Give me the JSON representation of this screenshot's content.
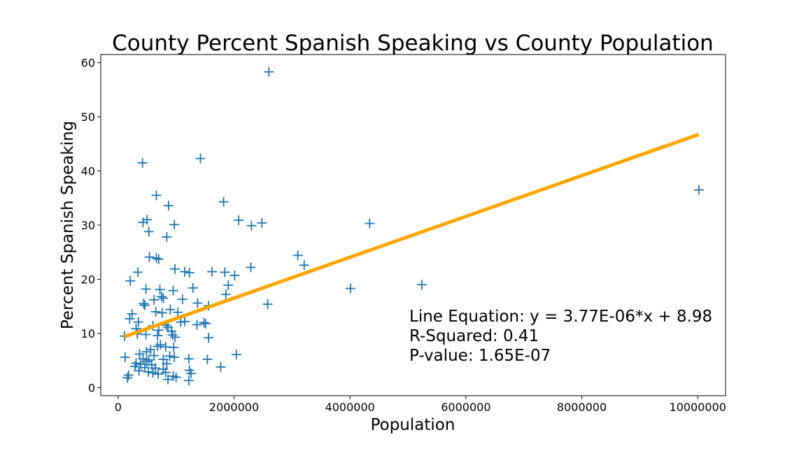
{
  "chart_data": {
    "type": "scatter",
    "title": "County Percent Spanish Speaking vs County Population",
    "xlabel": "Population",
    "ylabel": "Percent Spanish Speaking",
    "xlim": [
      -300000,
      10480000
    ],
    "ylim": [
      -1.5,
      61.5
    ],
    "x_ticks": [
      0,
      2000000,
      4000000,
      6000000,
      8000000,
      10000000
    ],
    "x_tick_labels": [
      "0",
      "2000000",
      "4000000",
      "6000000",
      "8000000",
      "10000000"
    ],
    "y_ticks": [
      0,
      10,
      20,
      30,
      40,
      50,
      60
    ],
    "y_tick_labels": [
      "0",
      "10",
      "20",
      "30",
      "40",
      "50",
      "60"
    ],
    "grid": false,
    "marker": "+",
    "point_color": "#1f77b4",
    "line_color": "#ffa500",
    "series": [
      {
        "points": [
          [
            2600000,
            58.3
          ],
          [
            1420000,
            42.3
          ],
          [
            420000,
            41.5
          ],
          [
            10020000,
            36.5
          ],
          [
            660000,
            35.5
          ],
          [
            1820000,
            34.3
          ],
          [
            870000,
            33.6
          ],
          [
            500000,
            31.0
          ],
          [
            430000,
            30.5
          ],
          [
            2080000,
            30.9
          ],
          [
            2480000,
            30.4
          ],
          [
            2300000,
            29.9
          ],
          [
            970000,
            30.1
          ],
          [
            4340000,
            30.3
          ],
          [
            530000,
            28.8
          ],
          [
            840000,
            27.8
          ],
          [
            3100000,
            24.4
          ],
          [
            540000,
            24.1
          ],
          [
            660000,
            23.9
          ],
          [
            700000,
            23.7
          ],
          [
            3210000,
            22.6
          ],
          [
            2290000,
            22.2
          ],
          [
            980000,
            21.9
          ],
          [
            1150000,
            21.4
          ],
          [
            1230000,
            21.2
          ],
          [
            1620000,
            21.4
          ],
          [
            1840000,
            21.3
          ],
          [
            2010000,
            20.7
          ],
          [
            340000,
            21.3
          ],
          [
            210000,
            19.7
          ],
          [
            1900000,
            18.9
          ],
          [
            4010000,
            18.3
          ],
          [
            5240000,
            19.0
          ],
          [
            1290000,
            18.4
          ],
          [
            480000,
            18.2
          ],
          [
            720000,
            18.1
          ],
          [
            950000,
            17.9
          ],
          [
            1860000,
            17.2
          ],
          [
            750000,
            16.8
          ],
          [
            620000,
            16.2
          ],
          [
            780000,
            16.5
          ],
          [
            1110000,
            16.3
          ],
          [
            2580000,
            15.4
          ],
          [
            1370000,
            15.6
          ],
          [
            440000,
            15.5
          ],
          [
            1560000,
            15.1
          ],
          [
            460000,
            15.2
          ],
          [
            900000,
            14.4
          ],
          [
            240000,
            13.6
          ],
          [
            650000,
            14.0
          ],
          [
            760000,
            13.8
          ],
          [
            1030000,
            13.9
          ],
          [
            350000,
            12.1
          ],
          [
            200000,
            12.7
          ],
          [
            1480000,
            12.0
          ],
          [
            1510000,
            11.8
          ],
          [
            1360000,
            11.6
          ],
          [
            1080000,
            12.1
          ],
          [
            830000,
            11.5
          ],
          [
            860000,
            11.1
          ],
          [
            310000,
            10.9
          ],
          [
            600000,
            11.4
          ],
          [
            700000,
            10.6
          ],
          [
            920000,
            10.4
          ],
          [
            1150000,
            12.2
          ],
          [
            110000,
            9.5
          ],
          [
            330000,
            9.9
          ],
          [
            480000,
            9.8
          ],
          [
            680000,
            9.6
          ],
          [
            940000,
            9.7
          ],
          [
            980000,
            9.3
          ],
          [
            1560000,
            9.2
          ],
          [
            1770000,
            3.8
          ],
          [
            2040000,
            6.1
          ],
          [
            1540000,
            5.2
          ],
          [
            1220000,
            5.3
          ],
          [
            680000,
            7.6
          ],
          [
            730000,
            7.9
          ],
          [
            820000,
            7.5
          ],
          [
            960000,
            7.4
          ],
          [
            560000,
            7.0
          ],
          [
            490000,
            6.6
          ],
          [
            370000,
            6.2
          ],
          [
            620000,
            5.9
          ],
          [
            890000,
            5.8
          ],
          [
            970000,
            5.6
          ],
          [
            120000,
            5.6
          ],
          [
            430000,
            5.3
          ],
          [
            530000,
            5.1
          ],
          [
            780000,
            5.2
          ],
          [
            490000,
            4.8
          ],
          [
            310000,
            4.5
          ],
          [
            390000,
            4.3
          ],
          [
            580000,
            4.2
          ],
          [
            840000,
            4.4
          ],
          [
            290000,
            3.9
          ],
          [
            460000,
            3.7
          ],
          [
            640000,
            3.6
          ],
          [
            780000,
            3.4
          ],
          [
            1230000,
            3.2
          ],
          [
            360000,
            3.1
          ],
          [
            520000,
            2.9
          ],
          [
            600000,
            2.7
          ],
          [
            820000,
            2.8
          ],
          [
            1260000,
            2.6
          ],
          [
            180000,
            2.3
          ],
          [
            690000,
            2.5
          ],
          [
            950000,
            2.1
          ],
          [
            1000000,
            1.9
          ],
          [
            160000,
            1.8
          ],
          [
            860000,
            1.5
          ],
          [
            1220000,
            1.3
          ]
        ]
      }
    ],
    "fit_line": {
      "slope": 3.77e-06,
      "intercept": 8.98,
      "x_range": [
        110000,
        10020000
      ]
    },
    "annotations": [
      "Line Equation: y = 3.77E-06*x + 8.98",
      "R-Squared: 0.41",
      "P-value: 1.65E-07"
    ]
  }
}
